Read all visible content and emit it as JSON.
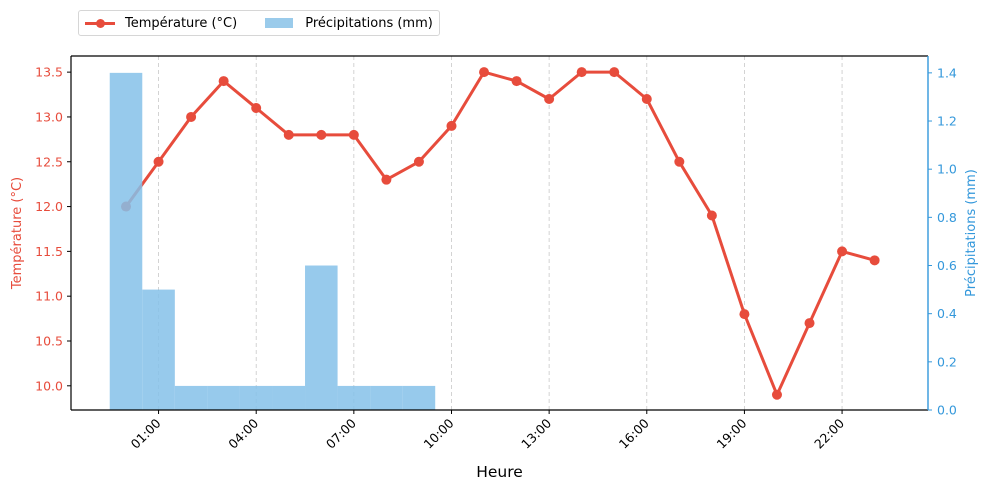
{
  "chart_data": {
    "type": "bar+line",
    "title": "",
    "xlabel": "Heure",
    "ylabel_left": "Température (°C)",
    "ylabel_right": "Précipitations (mm)",
    "x_hours": [
      0,
      1,
      2,
      3,
      4,
      5,
      6,
      7,
      8,
      9,
      10,
      11,
      12,
      13,
      14,
      15,
      16,
      17,
      18,
      19,
      20,
      21,
      22,
      23
    ],
    "xticks": [
      {
        "hour": 1,
        "label": "01:00"
      },
      {
        "hour": 4,
        "label": "04:00"
      },
      {
        "hour": 7,
        "label": "07:00"
      },
      {
        "hour": 10,
        "label": "10:00"
      },
      {
        "hour": 13,
        "label": "13:00"
      },
      {
        "hour": 16,
        "label": "16:00"
      },
      {
        "hour": 19,
        "label": "19:00"
      },
      {
        "hour": 22,
        "label": "22:00"
      }
    ],
    "xlim": [
      -1.69,
      24.64
    ],
    "series": [
      {
        "name": "Température (°C)",
        "type": "line",
        "axis": "left",
        "color": "#e74c3c",
        "values": [
          12.0,
          12.5,
          13.0,
          13.4,
          13.1,
          12.8,
          12.8,
          12.8,
          12.3,
          12.5,
          12.9,
          13.5,
          13.4,
          13.2,
          13.5,
          13.5,
          13.2,
          12.5,
          11.9,
          10.8,
          9.9,
          10.7,
          11.5,
          11.4
        ]
      },
      {
        "name": "Précipitations (mm)",
        "type": "bar",
        "axis": "right",
        "color": "#9acbeb",
        "values": [
          1.4,
          0.5,
          0.1,
          0.1,
          0.1,
          0.1,
          0.6,
          0.1,
          0.1,
          0.1,
          0,
          0,
          0,
          0,
          0,
          0,
          0,
          0,
          0,
          0,
          0,
          0,
          0,
          0
        ]
      }
    ],
    "ylim_left": [
      9.73,
      13.68
    ],
    "yticks_left": [
      10.0,
      10.5,
      11.0,
      11.5,
      12.0,
      12.5,
      13.0,
      13.5
    ],
    "ylim_right": [
      0,
      1.47
    ],
    "yticks_right": [
      0.0,
      0.2,
      0.4,
      0.6,
      0.8,
      1.0,
      1.2,
      1.4
    ],
    "grid": "x-dashed",
    "legend_position": "upper-left-outside",
    "left_axis_color": "#e74c3c",
    "right_axis_color": "#3498db"
  },
  "legend": {
    "temp_label": "Température (°C)",
    "precip_label": "Précipitations (mm)"
  }
}
